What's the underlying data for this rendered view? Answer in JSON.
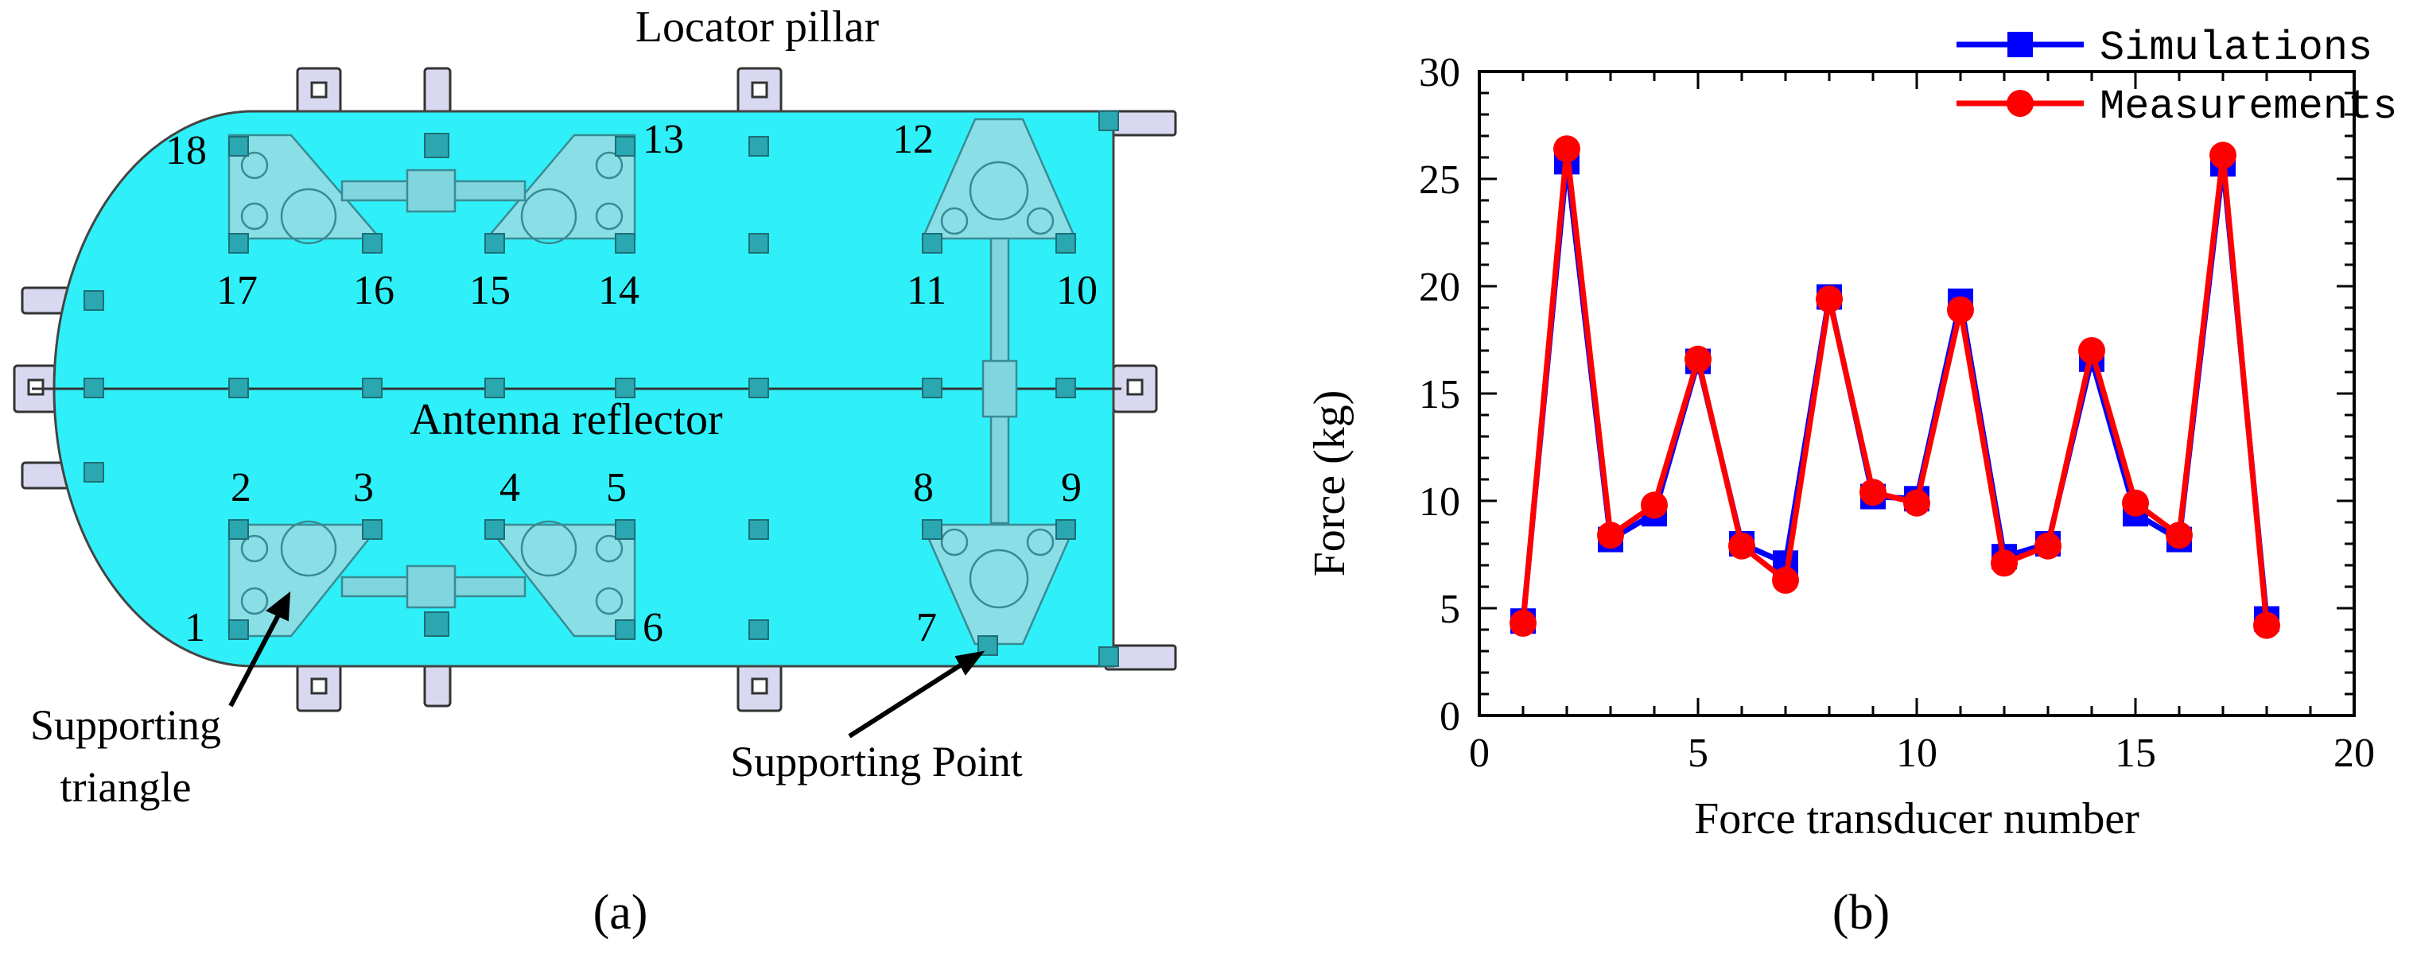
{
  "panel_a": {
    "caption": "(a)",
    "title": "Locator pillar",
    "reflector_label": "Antenna reflector",
    "triangle_label_line1": "Supporting",
    "triangle_label_line2": "triangle",
    "point_label": "Supporting Point",
    "point_numbers": [
      "1",
      "2",
      "3",
      "4",
      "5",
      "6",
      "7",
      "8",
      "9",
      "10",
      "11",
      "12",
      "13",
      "14",
      "15",
      "16",
      "17",
      "18"
    ],
    "colors": {
      "reflector_fill": "#2ff0f8",
      "pad_fill": "#8adfe6",
      "pillar_fill": "#d8d8f0",
      "outline": "#333333"
    }
  },
  "panel_b": {
    "caption": "(b)",
    "chart_data": {
      "type": "line",
      "xlabel": "Force transducer number",
      "ylabel": "Force (kg)",
      "xlim": [
        0,
        20
      ],
      "ylim": [
        0,
        30
      ],
      "xticks": [
        0,
        5,
        10,
        15,
        20
      ],
      "yticks": [
        0,
        5,
        10,
        15,
        20,
        25,
        30
      ],
      "x": [
        1,
        2,
        3,
        4,
        5,
        6,
        7,
        8,
        9,
        10,
        11,
        12,
        13,
        14,
        15,
        16,
        17,
        18
      ],
      "legend_position": "top-right",
      "grid": false,
      "series": [
        {
          "name": "Simulations",
          "color": "#0000ff",
          "marker": "square",
          "values": [
            4.4,
            25.8,
            8.2,
            9.4,
            16.5,
            8.0,
            7.1,
            19.5,
            10.2,
            10.1,
            19.3,
            7.4,
            8.0,
            16.6,
            9.4,
            8.2,
            25.7,
            4.5
          ]
        },
        {
          "name": "Measurements",
          "color": "#ff0000",
          "marker": "circle",
          "values": [
            4.3,
            26.4,
            8.4,
            9.8,
            16.6,
            7.9,
            6.3,
            19.4,
            10.4,
            9.9,
            18.9,
            7.1,
            7.9,
            17.0,
            9.9,
            8.4,
            26.1,
            4.2
          ]
        }
      ]
    }
  }
}
